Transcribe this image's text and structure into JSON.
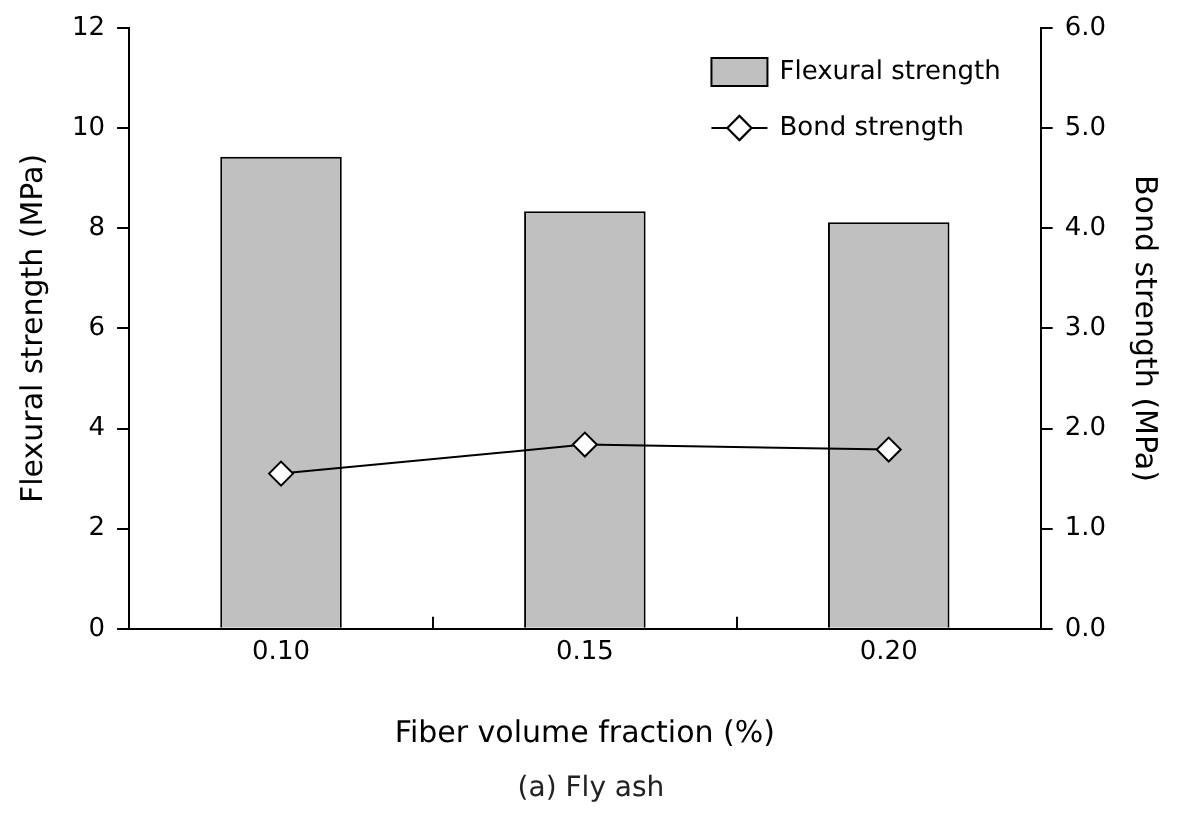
{
  "chart_data": {
    "type": "bar",
    "xlabel": "Fiber volume fraction (%)",
    "ylabel": "Flexural strength (MPa)",
    "y2label": "Bond strength (MPa)",
    "categories": [
      "0.10",
      "0.15",
      "0.20"
    ],
    "series": [
      {
        "name": "Flexural strength",
        "color": "#c0c0c0",
        "values": [
          9.43,
          8.34,
          8.12
        ]
      },
      {
        "name": "Bond strength",
        "type": "line",
        "axis": "y2",
        "color": "#000000",
        "marker": "diamond",
        "values": [
          1.55,
          1.84,
          1.79
        ]
      }
    ],
    "ylim": [
      0,
      12
    ],
    "yticks": [
      0,
      2,
      4,
      6,
      8,
      10,
      12
    ],
    "y2lim": [
      0,
      6
    ],
    "y2ticks": [
      {
        "value": 0,
        "label": "0.0"
      },
      {
        "value": 1,
        "label": "1.0"
      },
      {
        "value": 2,
        "label": "2.0"
      },
      {
        "value": 3,
        "label": "3.0"
      },
      {
        "value": 4,
        "label": "4.0"
      },
      {
        "value": 5,
        "label": "5.0"
      },
      {
        "value": 6,
        "label": "6.0"
      }
    ],
    "grid": false,
    "legend": "top right",
    "annotations": [
      "(a) Fly ash"
    ]
  }
}
